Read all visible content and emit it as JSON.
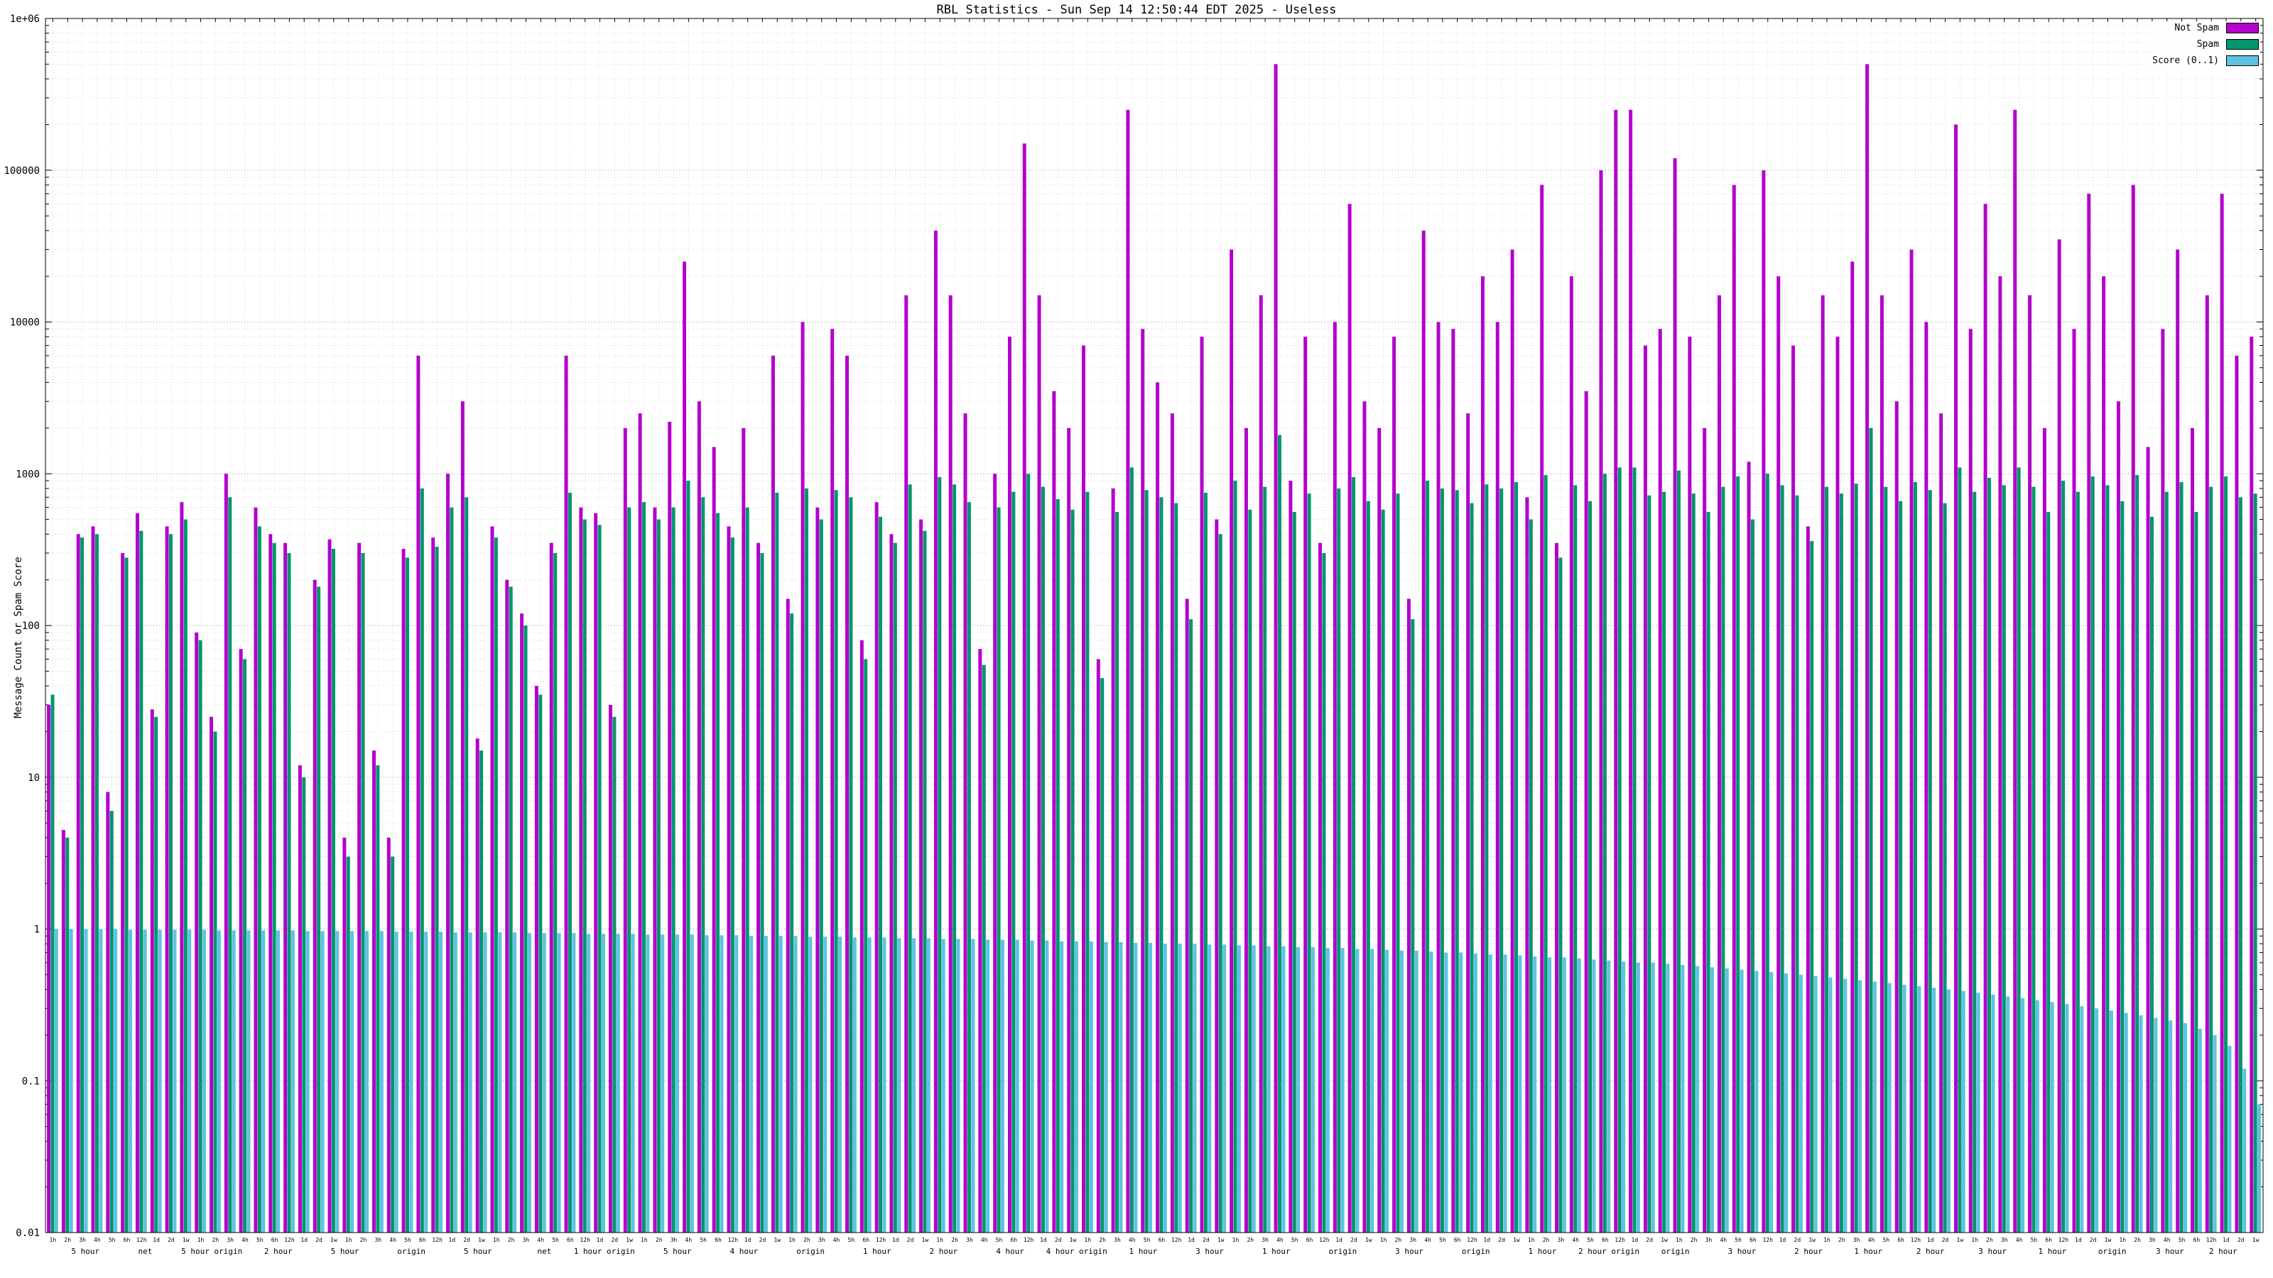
{
  "title": "RBL Statistics - Sun Sep 14 12:50:44 EDT 2025 - Useless",
  "ylabel": "Message Count or Spam Score",
  "legend": {
    "items": [
      {
        "label": "Not Spam",
        "color": "#b300cc"
      },
      {
        "label": "Spam",
        "color": "#00966e"
      },
      {
        "label": "Score (0..1)",
        "color": "#5fc3e0"
      }
    ]
  },
  "chart_data": {
    "type": "bar",
    "title": "RBL Statistics - Sun Sep 14 12:50:44 EDT 2025 - Useless",
    "xlabel": "",
    "ylabel": "Message Count or Spam Score",
    "yscale": "log",
    "ylim": [
      0.01,
      1000000
    ],
    "grid": true,
    "legend_position": "top-right",
    "ytick_labels": [
      "0.01",
      "0.1",
      "1",
      "10",
      "100",
      "1000",
      "10000",
      "100000",
      "1e+06"
    ],
    "categories": [
      "1h",
      "2h",
      "3h",
      "4h",
      "5h",
      "6h",
      "12h",
      "1d",
      "2d",
      "1w",
      "1h",
      "2h",
      "3h",
      "4h",
      "5h",
      "6h",
      "12h",
      "1d",
      "2d",
      "1w",
      "1h",
      "2h",
      "3h",
      "4h",
      "5h",
      "6h",
      "12h",
      "1d",
      "2d",
      "1w",
      "1h",
      "2h",
      "3h",
      "4h",
      "5h",
      "6h",
      "12h",
      "1d",
      "2d",
      "1w",
      "1h",
      "2h",
      "3h",
      "4h",
      "5h",
      "6h",
      "12h",
      "1d",
      "2d",
      "1w",
      "1h",
      "2h",
      "3h",
      "4h",
      "5h",
      "6h",
      "12h",
      "1d",
      "2d",
      "1w",
      "1h",
      "2h",
      "3h",
      "4h",
      "5h",
      "6h",
      "12h",
      "1d",
      "2d",
      "1w",
      "1h",
      "2h",
      "3h",
      "4h",
      "5h",
      "6h",
      "12h",
      "1d",
      "2d",
      "1w",
      "1h",
      "2h",
      "3h",
      "4h",
      "5h",
      "6h",
      "12h",
      "1d",
      "2d",
      "1w",
      "1h",
      "2h",
      "3h",
      "4h",
      "5h",
      "6h",
      "12h",
      "1d",
      "2d",
      "1w",
      "1h",
      "2h",
      "3h",
      "4h",
      "5h",
      "6h",
      "12h",
      "1d",
      "2d",
      "1w",
      "1h",
      "2h",
      "3h",
      "4h",
      "5h",
      "6h",
      "12h",
      "1d",
      "2d",
      "1w",
      "1h",
      "2h",
      "3h",
      "4h",
      "5h",
      "6h",
      "12h",
      "1d",
      "2d",
      "1w",
      "1h",
      "2h",
      "3h",
      "4h",
      "5h",
      "6h",
      "12h",
      "1d",
      "2d",
      "1w",
      "1h",
      "2h",
      "3h",
      "4h",
      "5h",
      "6h",
      "12h",
      "1d",
      "2d",
      "1w"
    ],
    "series": [
      {
        "name": "Not Spam",
        "key": "not-spam",
        "color": "#b300cc",
        "values": [
          30,
          4.5,
          400,
          450,
          8,
          300,
          550,
          28,
          450,
          650,
          90,
          25,
          1000,
          70,
          600,
          400,
          350,
          12,
          200,
          370,
          4,
          350,
          15,
          4,
          320,
          6000,
          380,
          1000,
          3000,
          18,
          450,
          200,
          120,
          40,
          350,
          6000,
          600,
          550,
          30,
          2000,
          2500,
          600,
          2200,
          25000,
          3000,
          1500,
          450,
          2000,
          350,
          6000,
          150,
          10000,
          600,
          9000,
          6000,
          80,
          650,
          400,
          15000,
          500,
          40000,
          15000,
          2500,
          70,
          1000,
          8000,
          150000,
          15000,
          3500,
          2000,
          7000,
          60,
          800,
          250000,
          9000,
          4000,
          2500,
          150,
          8000,
          500,
          30000,
          2000,
          15000,
          500000,
          900,
          8000,
          350,
          10000,
          60000,
          3000,
          2000,
          8000,
          150,
          40000,
          10000,
          9000,
          2500,
          20000,
          10000,
          30000,
          700,
          80000,
          350,
          20000,
          3500,
          100000,
          250000,
          250000,
          7000,
          9000,
          120000,
          8000,
          2000,
          15000,
          80000,
          1200,
          100000,
          20000,
          7000,
          450,
          15000,
          8000,
          25000,
          500000,
          15000,
          3000,
          30000,
          10000,
          2500,
          200000,
          9000,
          60000,
          20000,
          250000,
          15000,
          2000,
          35000,
          9000,
          70000,
          20000,
          3000,
          80000,
          1500,
          9000,
          30000,
          2000,
          15000,
          70000,
          6000,
          8000
        ]
      },
      {
        "name": "Spam",
        "key": "spam",
        "color": "#00966e",
        "values": [
          35,
          4,
          380,
          400,
          6,
          280,
          420,
          25,
          400,
          500,
          80,
          20,
          700,
          60,
          450,
          350,
          300,
          10,
          180,
          320,
          3,
          300,
          12,
          3,
          280,
          800,
          330,
          600,
          700,
          15,
          380,
          180,
          100,
          35,
          300,
          750,
          500,
          460,
          25,
          600,
          650,
          500,
          600,
          900,
          700,
          550,
          380,
          600,
          300,
          750,
          120,
          800,
          500,
          780,
          700,
          60,
          520,
          350,
          850,
          420,
          950,
          850,
          650,
          55,
          600,
          760,
          1000,
          820,
          680,
          580,
          760,
          45,
          560,
          1100,
          780,
          700,
          640,
          110,
          750,
          400,
          900,
          580,
          820,
          1800,
          560,
          740,
          300,
          800,
          950,
          660,
          580,
          740,
          110,
          900,
          800,
          780,
          640,
          850,
          800,
          880,
          500,
          980,
          280,
          840,
          660,
          1000,
          1100,
          1100,
          720,
          760,
          1050,
          740,
          560,
          820,
          960,
          500,
          1000,
          840,
          720,
          360,
          820,
          740,
          860,
          2000,
          820,
          660,
          880,
          780,
          640,
          1100,
          760,
          940,
          840,
          1100,
          820,
          560,
          900,
          760,
          960,
          840,
          660,
          980,
          520,
          760,
          880,
          560,
          820,
          960,
          700,
          740
        ]
      },
      {
        "name": "Score (0..1)",
        "key": "score",
        "color": "#5fc3e0",
        "values": [
          1.0,
          1.0,
          1.0,
          1.0,
          1.0,
          0.99,
          0.99,
          0.99,
          0.99,
          0.99,
          0.99,
          0.98,
          0.98,
          0.98,
          0.98,
          0.98,
          0.98,
          0.97,
          0.97,
          0.97,
          0.97,
          0.97,
          0.97,
          0.96,
          0.96,
          0.96,
          0.96,
          0.95,
          0.95,
          0.95,
          0.95,
          0.95,
          0.94,
          0.94,
          0.94,
          0.94,
          0.93,
          0.93,
          0.93,
          0.93,
          0.92,
          0.92,
          0.92,
          0.92,
          0.91,
          0.91,
          0.91,
          0.9,
          0.9,
          0.9,
          0.9,
          0.89,
          0.89,
          0.89,
          0.88,
          0.88,
          0.88,
          0.87,
          0.87,
          0.87,
          0.86,
          0.86,
          0.86,
          0.85,
          0.85,
          0.85,
          0.84,
          0.84,
          0.83,
          0.83,
          0.83,
          0.82,
          0.82,
          0.81,
          0.81,
          0.8,
          0.8,
          0.8,
          0.79,
          0.79,
          0.78,
          0.78,
          0.77,
          0.77,
          0.76,
          0.76,
          0.75,
          0.75,
          0.74,
          0.74,
          0.73,
          0.72,
          0.72,
          0.71,
          0.7,
          0.7,
          0.69,
          0.68,
          0.68,
          0.67,
          0.66,
          0.65,
          0.65,
          0.64,
          0.63,
          0.62,
          0.61,
          0.6,
          0.6,
          0.59,
          0.58,
          0.57,
          0.56,
          0.55,
          0.54,
          0.53,
          0.52,
          0.51,
          0.5,
          0.49,
          0.48,
          0.47,
          0.46,
          0.45,
          0.44,
          0.43,
          0.42,
          0.41,
          0.4,
          0.39,
          0.38,
          0.37,
          0.36,
          0.35,
          0.34,
          0.33,
          0.32,
          0.31,
          0.3,
          0.29,
          0.28,
          0.27,
          0.26,
          0.25,
          0.24,
          0.22,
          0.2,
          0.17,
          0.12,
          0.07
        ]
      }
    ],
    "group_labels": [
      {
        "pos": 0.018,
        "text": "5 hour"
      },
      {
        "pos": 0.045,
        "text": "net"
      },
      {
        "pos": 0.075,
        "text": "5 hour origin"
      },
      {
        "pos": 0.105,
        "text": "2 hour"
      },
      {
        "pos": 0.135,
        "text": "5 hour"
      },
      {
        "pos": 0.165,
        "text": "origin"
      },
      {
        "pos": 0.195,
        "text": "5 hour"
      },
      {
        "pos": 0.225,
        "text": "net"
      },
      {
        "pos": 0.252,
        "text": "1 hour origin"
      },
      {
        "pos": 0.285,
        "text": "5 hour"
      },
      {
        "pos": 0.315,
        "text": "4 hour"
      },
      {
        "pos": 0.345,
        "text": "origin"
      },
      {
        "pos": 0.375,
        "text": "1 hour"
      },
      {
        "pos": 0.405,
        "text": "2 hour"
      },
      {
        "pos": 0.435,
        "text": "4 hour"
      },
      {
        "pos": 0.465,
        "text": "4 hour origin"
      },
      {
        "pos": 0.495,
        "text": "1 hour"
      },
      {
        "pos": 0.525,
        "text": "3 hour"
      },
      {
        "pos": 0.555,
        "text": "1 hour"
      },
      {
        "pos": 0.585,
        "text": "origin"
      },
      {
        "pos": 0.615,
        "text": "3 hour"
      },
      {
        "pos": 0.645,
        "text": "origin"
      },
      {
        "pos": 0.675,
        "text": "1 hour"
      },
      {
        "pos": 0.705,
        "text": "2 hour origin"
      },
      {
        "pos": 0.735,
        "text": "origin"
      },
      {
        "pos": 0.765,
        "text": "3 hour"
      },
      {
        "pos": 0.795,
        "text": "2 hour"
      },
      {
        "pos": 0.822,
        "text": "1 hour"
      },
      {
        "pos": 0.85,
        "text": "2 hour"
      },
      {
        "pos": 0.878,
        "text": "3 hour"
      },
      {
        "pos": 0.905,
        "text": "1 hour"
      },
      {
        "pos": 0.932,
        "text": "origin"
      },
      {
        "pos": 0.958,
        "text": "3 hour"
      },
      {
        "pos": 0.982,
        "text": "2 hour"
      }
    ]
  }
}
